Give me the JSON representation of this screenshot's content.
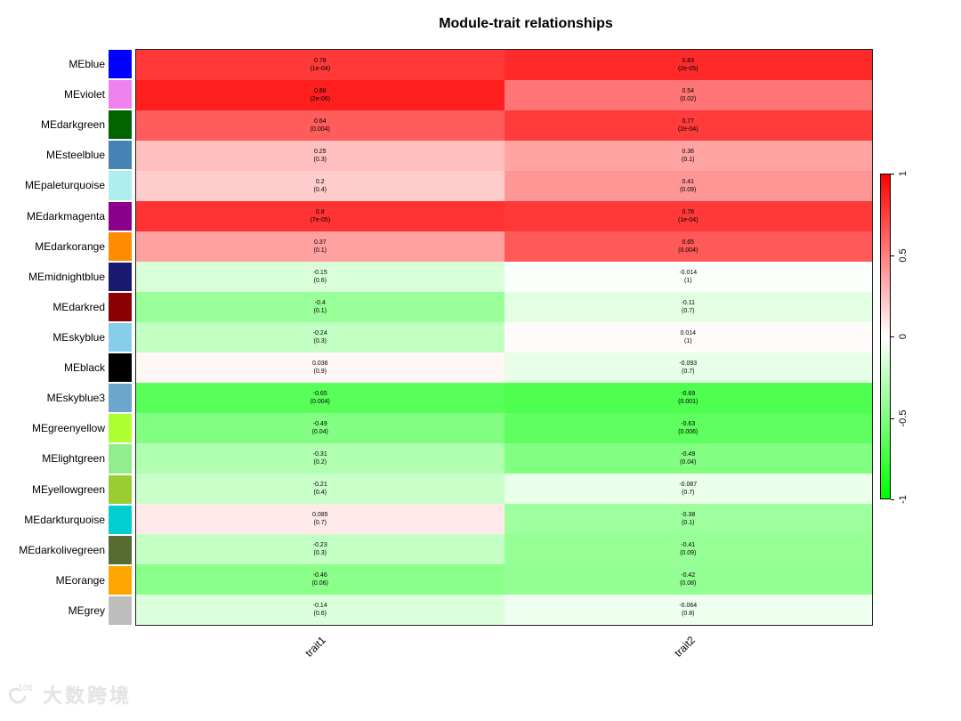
{
  "title": "Module-trait relationships",
  "watermark": {
    "logo_text": "100",
    "text": "大数跨境"
  },
  "legend": {
    "max_color": "#FF0000",
    "mid_color": "#FFFFFF",
    "min_color": "#00FF00",
    "ticks": [
      {
        "label": "1",
        "value": 1
      },
      {
        "label": "0.5",
        "value": 0.5
      },
      {
        "label": "0",
        "value": 0
      },
      {
        "label": "-0.5",
        "value": -0.5
      },
      {
        "label": "-1",
        "value": -1
      }
    ]
  },
  "chart_data": {
    "type": "heatmap",
    "title": "Module-trait relationships",
    "columns": [
      "trait1",
      "trait2"
    ],
    "colorscale": {
      "min": -1,
      "max": 1,
      "min_color": "#00FF00",
      "mid_color": "#FFFFFF",
      "max_color": "#FF0000",
      "legend_position": "right"
    },
    "rows": [
      {
        "module": "MEblue",
        "swatch": "#0000FF",
        "cells": [
          {
            "cor": "0.78",
            "p": "1e-04"
          },
          {
            "cor": "0.83",
            "p": "2e-05"
          }
        ]
      },
      {
        "module": "MEviolet",
        "swatch": "#EE82EE",
        "cells": [
          {
            "cor": "0.88",
            "p": "2e-06"
          },
          {
            "cor": "0.54",
            "p": "0.02"
          }
        ]
      },
      {
        "module": "MEdarkgreen",
        "swatch": "#006400",
        "cells": [
          {
            "cor": "0.64",
            "p": "0.004"
          },
          {
            "cor": "0.77",
            "p": "2e-04"
          }
        ]
      },
      {
        "module": "MEsteelblue",
        "swatch": "#4682B4",
        "cells": [
          {
            "cor": "0.25",
            "p": "0.3"
          },
          {
            "cor": "0.36",
            "p": "0.1"
          }
        ]
      },
      {
        "module": "MEpaleturquoise",
        "swatch": "#AFEEEE",
        "cells": [
          {
            "cor": "0.2",
            "p": "0.4"
          },
          {
            "cor": "0.41",
            "p": "0.09"
          }
        ]
      },
      {
        "module": "MEdarkmagenta",
        "swatch": "#8B008B",
        "cells": [
          {
            "cor": "0.8",
            "p": "7e-05"
          },
          {
            "cor": "0.78",
            "p": "1e-04"
          }
        ]
      },
      {
        "module": "MEdarkorange",
        "swatch": "#FF8C00",
        "cells": [
          {
            "cor": "0.37",
            "p": "0.1"
          },
          {
            "cor": "0.65",
            "p": "0.004"
          }
        ]
      },
      {
        "module": "MEmidnightblue",
        "swatch": "#191970",
        "cells": [
          {
            "cor": "-0.15",
            "p": "0.6"
          },
          {
            "cor": "-0.014",
            "p": "1"
          }
        ]
      },
      {
        "module": "MEdarkred",
        "swatch": "#8B0000",
        "cells": [
          {
            "cor": "-0.4",
            "p": "0.1"
          },
          {
            "cor": "-0.11",
            "p": "0.7"
          }
        ]
      },
      {
        "module": "MEskyblue",
        "swatch": "#87CEEB",
        "cells": [
          {
            "cor": "-0.24",
            "p": "0.3"
          },
          {
            "cor": "0.014",
            "p": "1"
          }
        ]
      },
      {
        "module": "MEblack",
        "swatch": "#000000",
        "cells": [
          {
            "cor": "0.036",
            "p": "0.9"
          },
          {
            "cor": "-0.093",
            "p": "0.7"
          }
        ]
      },
      {
        "module": "MEskyblue3",
        "swatch": "#6CA6CD",
        "cells": [
          {
            "cor": "-0.65",
            "p": "0.004"
          },
          {
            "cor": "-0.69",
            "p": "0.001"
          }
        ]
      },
      {
        "module": "MEgreenyellow",
        "swatch": "#ADFF2F",
        "cells": [
          {
            "cor": "-0.49",
            "p": "0.04"
          },
          {
            "cor": "-0.63",
            "p": "0.006"
          }
        ]
      },
      {
        "module": "MElightgreen",
        "swatch": "#90EE90",
        "cells": [
          {
            "cor": "-0.31",
            "p": "0.2"
          },
          {
            "cor": "-0.49",
            "p": "0.04"
          }
        ]
      },
      {
        "module": "MEyellowgreen",
        "swatch": "#9ACD32",
        "cells": [
          {
            "cor": "-0.21",
            "p": "0.4"
          },
          {
            "cor": "-0.087",
            "p": "0.7"
          }
        ]
      },
      {
        "module": "MEdarkturquoise",
        "swatch": "#00CED1",
        "cells": [
          {
            "cor": "0.085",
            "p": "0.7"
          },
          {
            "cor": "-0.38",
            "p": "0.1"
          }
        ]
      },
      {
        "module": "MEdarkolivegreen",
        "swatch": "#556B2F",
        "cells": [
          {
            "cor": "-0.23",
            "p": "0.3"
          },
          {
            "cor": "-0.41",
            "p": "0.09"
          }
        ]
      },
      {
        "module": "MEorange",
        "swatch": "#FFA500",
        "cells": [
          {
            "cor": "-0.46",
            "p": "0.06"
          },
          {
            "cor": "-0.42",
            "p": "0.08"
          }
        ]
      },
      {
        "module": "MEgrey",
        "swatch": "#BEBEBE",
        "cells": [
          {
            "cor": "-0.14",
            "p": "0.6"
          },
          {
            "cor": "-0.064",
            "p": "0.8"
          }
        ]
      }
    ]
  }
}
